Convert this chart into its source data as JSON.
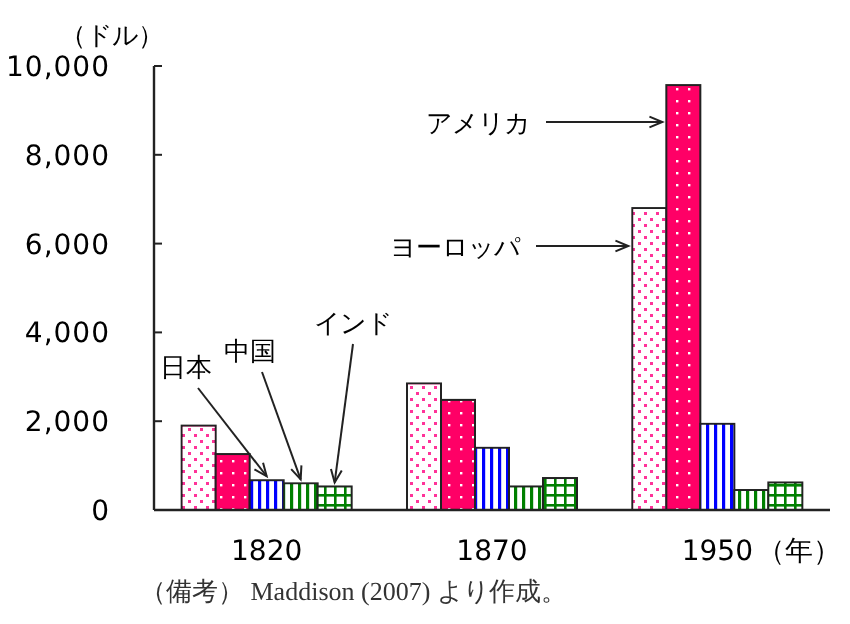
{
  "chart_data": {
    "type": "bar",
    "ylabel": "（ドル）",
    "xlabel": "（年）",
    "categories": [
      "1820",
      "1870",
      "1950"
    ],
    "series": [
      {
        "name": "ヨーロッパ",
        "color": "#ff3399",
        "values": [
          1900,
          2850,
          6800
        ]
      },
      {
        "name": "アメリカ",
        "color": "#ff0066",
        "values": [
          1260,
          2480,
          9570
        ]
      },
      {
        "name": "日本",
        "color": "#0000ff",
        "values": [
          670,
          1400,
          1940
        ]
      },
      {
        "name": "中国",
        "color": "#008000",
        "values": [
          600,
          530,
          450
        ]
      },
      {
        "name": "インド",
        "color": "#008000",
        "values": [
          530,
          720,
          620
        ]
      }
    ],
    "ylim": [
      0,
      10000
    ],
    "yticks": [
      {
        "value": 0,
        "label": "0"
      },
      {
        "value": 2000,
        "label": "2,000"
      },
      {
        "value": 4000,
        "label": "4,000"
      },
      {
        "value": 6000,
        "label": "6,000"
      },
      {
        "value": 8000,
        "label": "8,000"
      },
      {
        "value": 10000,
        "label": "10,000"
      }
    ],
    "grid": false,
    "legend": "top",
    "annotations": [
      "（備考） Maddison (2007) より作成。"
    ]
  }
}
